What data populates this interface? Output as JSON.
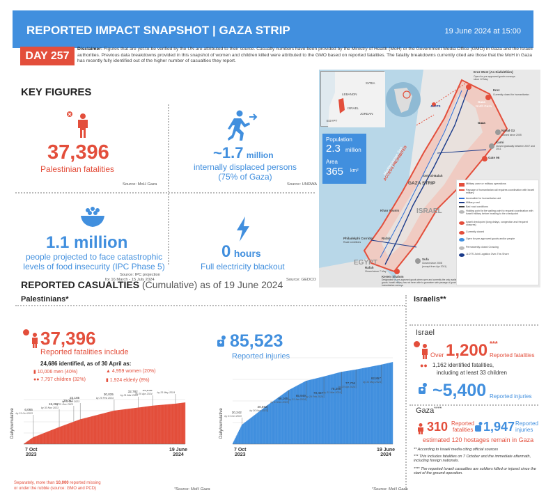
{
  "header": {
    "title": "REPORTED IMPACT SNAPSHOT | GAZA STRIP",
    "date": "19 June 2024 at 15:00"
  },
  "day_badge": "DAY 257",
  "disclaimer": {
    "label": "Disclaimer:",
    "text": "Figures that are yet-to-be verified by the UN are attributed to their source. Casualty numbers have been provided by the Ministry of Health (MoH) or the Government Media Office (GMO) in Gaza and the Israeli authorities. Previous data breakdowns provided in this snapshot of women and children killed were attributed to the GMO based on reported fatalities. The fatality breakdowns currently cited are those that the MoH in Gaza has recently fully identified out of the higher number of casualties they report."
  },
  "key_figures": {
    "title": "KEY FIGURES",
    "fatalities": {
      "value": "37,396",
      "label": "Palestinian fatalities",
      "source": "Source: MoH Gaza"
    },
    "displaced": {
      "prefix": "~",
      "value": "1.7",
      "unit": "million",
      "label_1": "internally displaced persons",
      "label_2": "(75% of Gaza)",
      "source": "Source: UNRWA"
    },
    "food": {
      "value": "1.1 million",
      "label_1": "people projected to face catastrophic",
      "label_2": "levels of food insecurity (IPC Phase 5)",
      "source_1": "Source: IPC projection",
      "source_2": "for 16 March - 15 July 2024"
    },
    "electricity": {
      "value": "0",
      "unit": "hours",
      "label": "Full electricity blackout",
      "source": "Source: GEDCO"
    }
  },
  "map": {
    "population_label": "Population",
    "population_value": "2.3",
    "population_unit": "million",
    "area_label": "Area",
    "area_value": "365",
    "area_unit": "km²",
    "places": {
      "lebanon": "LEBANON",
      "syria": "SYRIA",
      "israel_small": "ISRAEL",
      "jordan": "JORDAN",
      "egypt_small": "EGYPT",
      "erez": "Erez West (As-Siafa/Zikim)",
      "erez_note": "Open for pre-approved goods convoys since 12 May",
      "erez2": "Erez",
      "erez2_note": "Currently closed for humanitarian",
      "gaza": "Gaza",
      "gaza_sub": "North Gaza",
      "jdrs": "JLOTS",
      "gaza_city": "Gaza",
      "nahal_oz": "Nahal Oz",
      "nahal_note": "Closed since 2005",
      "karni": "Karni",
      "karni_note": "Closed gradually between 2007 and 2011",
      "gate96": "Gate 96",
      "deir": "Deir al-Balah",
      "strip": "GAZA STRIP",
      "israel": "ISRAEL",
      "khan": "Khan Younis",
      "phila": "Philadelphi Corridor",
      "phila_note": "Road conditions",
      "rafah": "Rafah",
      "sufa": "Sufa",
      "sufa_note": "Closed since 2008",
      "sufa_note2": "(except from Apr 2011)",
      "rafah_cross": "Rafah",
      "rafah_note": "Closed since 7 May",
      "kerem": "Kerem Shalom",
      "kerem_note": "Designated for pre-approved goods when open and currently the only available crossing for goods. Israeli military has not been able to guarantee safe passage of goods to humanitarian convoys",
      "egypt": "EGYPT",
      "sea": "Mediterranean Sea",
      "fishing": "ACCESS PROHIBITED"
    },
    "legend": {
      "title": "Military zone or military operations",
      "items": [
        "Passage of humanitarian aid requires coordination with Israeli military",
        "Accessible for humanitarian aid",
        "Military road",
        "Bad road conditions",
        "Holding point is the waiting point to request coordination with Israeli military before heading to the checkpoint",
        "Israeli checkpoint (long delays, congestion and frequent closures)",
        "Currently closed",
        "Open for pre-approved goods and/or people",
        "Permanently closed Crossing",
        "JLOTS Joint Logistics Over-The-Shore"
      ]
    }
  },
  "casualties": {
    "title": "REPORTED CASUALTIES",
    "subtitle": "(Cumulative) as of 19 June 2024",
    "palestinians_title": "Palestinians*",
    "fatalities_value": "37,396",
    "fatalities_label": "Reported fatalities include",
    "identified": "24,686 identified, as of 30 April as:",
    "men": "10,006 men (40%)",
    "women": "4,959 women (20%)",
    "children": "7,797 children (32%)",
    "elderly": "1,924 elderly (8%)",
    "injuries_value": "85,523",
    "injuries_label": "Reported injuries",
    "chart_ylabel": "Daily/cumulative",
    "x_start": "7 Oct",
    "x_start_year": "2023",
    "x_end": "19 June",
    "x_end_year": "2024",
    "footnote_1": "Separately, more than ",
    "footnote_bold": "10,000",
    "footnote_2": " reported missing",
    "footnote_3": "or under the rubble (source: GMO and PCD)",
    "source": "*Source: MoH Gaza"
  },
  "israelis": {
    "title": "Israelis**",
    "israel_title": "Israel",
    "over": "Over",
    "fatalities_value": "1,200",
    "fatalities_stars": "***",
    "fatalities_label": "Reported fatalities",
    "identified": "1,162 identified fatalities,",
    "identified_2": "including at least 33 children",
    "injuries_value": "~5,400",
    "injuries_label": "Reported injuries",
    "gaza_title": "Gaza",
    "gaza_stars": "****",
    "gaza_fatalities": "310",
    "gaza_fatalities_label_1": "Reported",
    "gaza_fatalities_label_2": "fatalities",
    "gaza_injuries": "1,947",
    "gaza_injuries_label_1": "Reported",
    "gaza_injuries_label_2": "injuries",
    "hostages": "estimated 120 hostages remain in Gaza",
    "note_1": "** According to Israeli media citing official sources",
    "note_2": "*** This includes fatalities on 7 October and the immediate aftermath, including foreign nationals.",
    "note_3": "**** The reported Israeli casualties are soldiers killed or injured since the start of the ground operation."
  },
  "colors": {
    "brand_blue": "#418fde",
    "brand_red": "#e34e3b"
  },
  "chart_data": [
    {
      "type": "area",
      "title": "Reported fatalities include",
      "ylabel": "Daily/cumulative",
      "x": [
        "21 Oct 2023",
        "30 Nov 2023",
        "21 Dec 2023",
        "31 Dec 2023",
        "29 Feb 2024",
        "31 Mar 2024",
        "20 Apr 2024",
        "31 May 2024"
      ],
      "values": [
        6065,
        15207,
        20057,
        22185,
        30035,
        32782,
        34535,
        36284
      ],
      "labels": [
        "6,065",
        "15,207",
        "20,057",
        "22,185",
        "30,035",
        "32,782",
        "34,535",
        "36,284"
      ],
      "ylim": [
        0,
        40000
      ]
    },
    {
      "type": "area",
      "title": "Reported injuries",
      "ylabel": "Daily/cumulative",
      "x": [
        "21 Oct 2023",
        "30 Nov 2023",
        "31 Dec 2023",
        "31 Jan 2024",
        "29 Feb 2024",
        "31 Mar 2024",
        "20 Apr 2024",
        "31 May 2024"
      ],
      "values": [
        20242,
        40652,
        56165,
        65949,
        70457,
        75298,
        77704,
        82857
      ],
      "labels": [
        "20,242",
        "40,652",
        "56,165",
        "65,949",
        "70,457",
        "75,298",
        "77,704",
        "82,857"
      ],
      "ylim": [
        0,
        90000
      ]
    }
  ]
}
